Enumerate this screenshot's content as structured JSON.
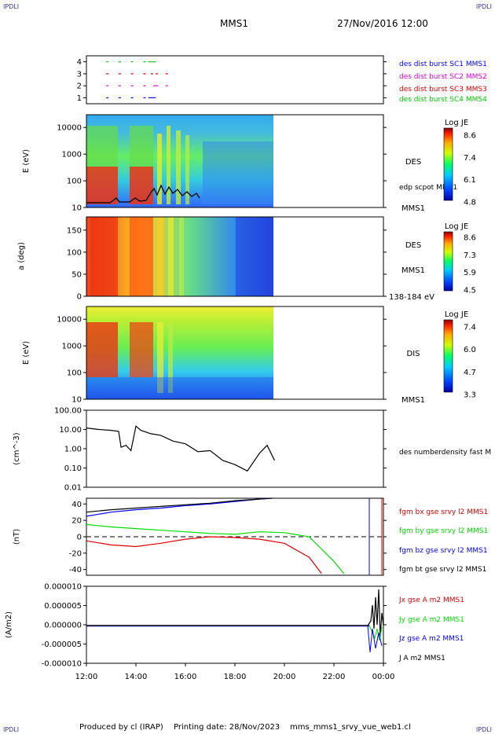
{
  "header": {
    "corner_tl": "IPDLI",
    "corner_tr": "IPDLI",
    "corner_bl": "IPDLI",
    "corner_br": "IPDLI",
    "spacecraft": "MMS1",
    "date_time": "27/Nov/2016 12:00"
  },
  "footer": {
    "produced_by": "Produced by cl (IRAP)",
    "printing_date": "Printing date: 28/Nov/2023",
    "file": "mms_mms1_srvy_vue_web1.cl"
  },
  "colors": {
    "c1": "#0000ff",
    "c2": "#dd00dd",
    "c3": "#dd0000",
    "c4": "#00cc00",
    "red": "#dd0000",
    "green": "#00dd00",
    "blue": "#0000ff",
    "black": "#000000"
  },
  "chart_data": [
    {
      "type": "scatter",
      "panel": "burst-availability",
      "yticks": [
        "1",
        "2",
        "3",
        "4"
      ],
      "ylim": [
        0.5,
        4.5
      ],
      "series": [
        {
          "name": "des dist burst SC1 MMS1",
          "level": 1,
          "x_hours": [
            12.8,
            13.3,
            13.8,
            14.3,
            14.5,
            14.6,
            14.7
          ]
        },
        {
          "name": "des dist burst SC2 MMS2",
          "level": 2,
          "x_hours": [
            12.8,
            13.3,
            13.8,
            14.3,
            14.7,
            14.8,
            15.2
          ]
        },
        {
          "name": "des dist burst SC3 MMS3",
          "level": 3,
          "x_hours": [
            12.8,
            13.3,
            13.8,
            14.3,
            14.6,
            14.8,
            15.2
          ]
        },
        {
          "name": "des dist burst SC4 MMS4",
          "level": 4,
          "x_hours": [
            12.8,
            13.3,
            13.8,
            14.3,
            14.5,
            14.6,
            14.7
          ]
        }
      ]
    },
    {
      "type": "heatmap",
      "panel": "des-energy-spectrogram",
      "ylabel": "E (eV)",
      "yscale": "log",
      "ylim": [
        10,
        30000
      ],
      "yticks": [
        "10",
        "100",
        "1000",
        "10000"
      ],
      "label": "DES",
      "colorbar": {
        "title": "Log JE",
        "ticks": [
          "4.8",
          "6.1",
          "7.4",
          "8.6"
        ]
      },
      "overlay": {
        "name": "edp scpot MMS1"
      },
      "sub_label": "MMS1",
      "data_end_hours": 19.6
    },
    {
      "type": "heatmap",
      "panel": "des-pitch-angle",
      "ylabel": "a (deg)",
      "ylim": [
        0,
        180
      ],
      "yticks": [
        "0",
        "50",
        "100",
        "150"
      ],
      "label": "DES",
      "sub_label": "MMS1",
      "energy_range": "138-184 eV",
      "colorbar": {
        "title": "Log JE",
        "ticks": [
          "4.5",
          "5.9",
          "7.3",
          "8.6"
        ]
      },
      "data_end_hours": 19.6
    },
    {
      "type": "heatmap",
      "panel": "dis-energy-spectrogram",
      "ylabel": "E (eV)",
      "yscale": "log",
      "ylim": [
        10,
        30000
      ],
      "yticks": [
        "10",
        "100",
        "1000",
        "10000"
      ],
      "label": "DIS",
      "sub_label": "MMS1",
      "colorbar": {
        "title": "Log JE",
        "ticks": [
          "3.3",
          "4.7",
          "6.0",
          "7.4"
        ]
      },
      "data_end_hours": 19.6
    },
    {
      "type": "line",
      "panel": "density",
      "ylabel": "(cm^-3)",
      "yscale": "log",
      "ylim": [
        0.01,
        100
      ],
      "yticks": [
        "0.01",
        "0.10",
        "1.00",
        "10.00",
        "100.00"
      ],
      "series": [
        {
          "name": "des numberdensity fast M",
          "color": "#000000",
          "x_hours": [
            12.0,
            12.5,
            13.0,
            13.3,
            13.4,
            13.6,
            13.8,
            14.0,
            14.2,
            14.6,
            15.0,
            15.5,
            16.0,
            16.5,
            17.0,
            17.5,
            18.0,
            18.5,
            19.0,
            19.3,
            19.6
          ],
          "values": [
            12,
            10,
            9,
            8,
            1.2,
            1.5,
            0.8,
            15,
            9,
            6,
            5,
            2.5,
            1.8,
            0.7,
            0.8,
            0.25,
            0.15,
            0.07,
            0.6,
            1.5,
            0.25
          ]
        }
      ]
    },
    {
      "type": "line",
      "panel": "magnetic-field",
      "ylabel": "(nT)",
      "ylim": [
        -47,
        47
      ],
      "yticks": [
        "-40",
        "-20",
        "0",
        "20",
        "40"
      ],
      "series": [
        {
          "name": "fgm bx gse srvy l2 MMS1",
          "color": "#dd0000",
          "x_hours": [
            12.0,
            13.0,
            14.0,
            15.0,
            16.0,
            17.0,
            18.0,
            19.0,
            20.0,
            21.0,
            21.5
          ],
          "values": [
            -5,
            -10,
            -12,
            -8,
            -3,
            0,
            -1,
            -3,
            -8,
            -25,
            -45
          ]
        },
        {
          "name": "fgm by gse srvy l2 MMS1",
          "color": "#00dd00",
          "x_hours": [
            12.0,
            13.0,
            14.0,
            15.0,
            16.0,
            17.0,
            18.0,
            19.0,
            20.0,
            21.0,
            22.0,
            22.4
          ],
          "values": [
            15,
            12,
            10,
            8,
            6,
            4,
            3,
            6,
            5,
            0,
            -30,
            -45
          ]
        },
        {
          "name": "fgm bz gse srvy l2 MMS1",
          "color": "#0000ff",
          "x_hours": [
            12.0,
            13.0,
            14.0,
            15.0,
            16.0,
            17.0,
            18.0,
            19.0,
            19.5
          ],
          "values": [
            25,
            30,
            33,
            35,
            38,
            40,
            43,
            46,
            47
          ]
        },
        {
          "name": "fgm bt gse srvy l2 MMS1",
          "color": "#000000",
          "x_hours": [
            12.0,
            13.0,
            14.0,
            15.0,
            16.0,
            17.0,
            18.0,
            19.0,
            19.5
          ],
          "values": [
            30,
            33,
            35,
            37,
            39,
            41,
            44,
            46,
            47
          ]
        }
      ]
    },
    {
      "type": "line",
      "panel": "current-density",
      "ylabel": "(A/m2)",
      "ylim": [
        -1e-05,
        1e-05
      ],
      "yticks": [
        "-0.000010",
        "-0.000005",
        "0.000000",
        "0.000005",
        "0.000010"
      ],
      "series": [
        {
          "name": "Jx gse A m2 MMS1",
          "color": "#dd0000"
        },
        {
          "name": "Jy gse A m2 MMS1",
          "color": "#00dd00"
        },
        {
          "name": "Jz gse A m2 MMS1",
          "color": "#0000ff"
        },
        {
          "name": "J A m2 MMS1",
          "color": "#000000"
        }
      ],
      "xticks": [
        "12:00",
        "14:00",
        "16:00",
        "18:00",
        "20:00",
        "22:00",
        "00:00"
      ],
      "xlim_hours": [
        12,
        24
      ]
    }
  ]
}
